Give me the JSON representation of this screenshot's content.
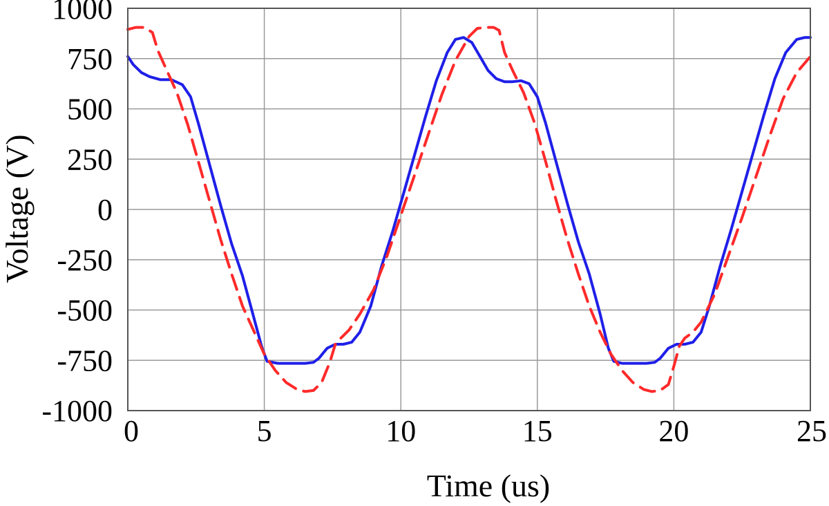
{
  "chart_data": {
    "type": "line",
    "xlabel": "Time (us)",
    "ylabel": "Voltage (V)",
    "xlim": [
      0,
      25
    ],
    "ylim": [
      -1000,
      1000
    ],
    "xticks": [
      0,
      5,
      10,
      15,
      20,
      25
    ],
    "yticks": [
      1000,
      750,
      500,
      250,
      0,
      -250,
      -500,
      -750,
      -1000
    ],
    "grid": true,
    "legend": "none",
    "series": [
      {
        "color": "#1f1fe8",
        "line_style": "solid",
        "x": [
          0,
          0.2,
          0.5,
          0.8,
          1.2,
          1.6,
          2.0,
          2.3,
          2.6,
          3.0,
          3.4,
          3.8,
          4.2,
          4.6,
          4.9,
          5.1,
          5.5,
          6.0,
          6.5,
          6.8,
          7.0,
          7.3,
          7.6,
          7.9,
          8.2,
          8.5,
          8.9,
          9.3,
          9.7,
          10.1,
          10.5,
          10.9,
          11.3,
          11.7,
          12.0,
          12.3,
          12.6,
          12.9,
          13.2,
          13.5,
          13.8,
          14.1,
          14.4,
          14.7,
          15.0,
          15.3,
          15.7,
          16.1,
          16.5,
          16.9,
          17.3,
          17.6,
          17.8,
          18.1,
          18.5,
          19.0,
          19.3,
          19.5,
          19.8,
          20.1,
          20.4,
          20.7,
          21.0,
          21.3,
          21.7,
          22.1,
          22.5,
          22.9,
          23.3,
          23.7,
          24.1,
          24.5,
          24.8,
          25.0
        ],
        "y": [
          760,
          720,
          680,
          660,
          645,
          645,
          620,
          560,
          420,
          220,
          20,
          -170,
          -330,
          -530,
          -680,
          -755,
          -765,
          -765,
          -765,
          -760,
          -740,
          -690,
          -670,
          -670,
          -660,
          -610,
          -480,
          -280,
          -110,
          80,
          270,
          460,
          640,
          780,
          845,
          855,
          830,
          760,
          690,
          650,
          635,
          635,
          640,
          625,
          560,
          430,
          230,
          30,
          -160,
          -320,
          -520,
          -690,
          -755,
          -765,
          -765,
          -765,
          -760,
          -740,
          -690,
          -670,
          -670,
          -660,
          -610,
          -480,
          -280,
          -100,
          90,
          280,
          470,
          650,
          780,
          845,
          855,
          855
        ]
      },
      {
        "color": "#ff2a2a",
        "line_style": "dashed",
        "x": [
          0,
          0.3,
          0.6,
          0.9,
          1.1,
          1.4,
          1.8,
          2.2,
          2.6,
          3.0,
          3.4,
          3.8,
          4.2,
          4.6,
          5.0,
          5.4,
          5.8,
          6.2,
          6.5,
          6.8,
          7.1,
          7.4,
          7.6,
          7.8,
          8.1,
          8.5,
          9.0,
          9.5,
          10.0,
          10.5,
          11.0,
          11.5,
          12.0,
          12.5,
          12.8,
          13.1,
          13.4,
          13.6,
          13.8,
          14.1,
          14.5,
          14.9,
          15.3,
          15.7,
          16.1,
          16.5,
          16.9,
          17.3,
          17.7,
          18.1,
          18.5,
          18.9,
          19.2,
          19.5,
          19.8,
          20.0,
          20.2,
          20.4,
          20.7,
          21.0,
          21.5,
          22.0,
          22.5,
          23.0,
          23.5,
          24.0,
          24.5,
          25.0
        ],
        "y": [
          895,
          905,
          905,
          880,
          790,
          700,
          580,
          420,
          230,
          40,
          -150,
          -320,
          -480,
          -600,
          -720,
          -800,
          -860,
          -895,
          -905,
          -900,
          -860,
          -760,
          -670,
          -640,
          -600,
          -520,
          -400,
          -230,
          -30,
          170,
          370,
          570,
          740,
          860,
          900,
          905,
          905,
          890,
          780,
          690,
          580,
          430,
          240,
          40,
          -150,
          -320,
          -480,
          -610,
          -720,
          -800,
          -860,
          -895,
          -905,
          -900,
          -870,
          -780,
          -680,
          -640,
          -610,
          -560,
          -420,
          -230,
          -40,
          160,
          360,
          550,
          680,
          760
        ]
      }
    ]
  }
}
